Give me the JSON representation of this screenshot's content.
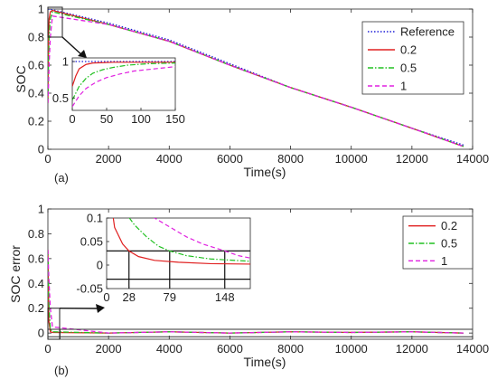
{
  "chart_data": [
    {
      "panel_label": "(a)",
      "type": "line",
      "xlabel": "Time(s)",
      "ylabel": "SOC",
      "xlim": [
        0,
        14000
      ],
      "ylim": [
        0,
        1
      ],
      "xticks": [
        "0",
        "2000",
        "4000",
        "6000",
        "8000",
        "10000",
        "12000",
        "14000"
      ],
      "yticks": [
        "0",
        "0.2",
        "0.4",
        "0.6",
        "0.8",
        "1"
      ],
      "legend_position": "top-right",
      "series": [
        {
          "name": "Reference",
          "color": "#1f1fd8",
          "style": "dotted",
          "x": [
            0,
            150,
            2000,
            4000,
            6000,
            8000,
            10000,
            12000,
            13700
          ],
          "y": [
            1.0,
            0.995,
            0.9,
            0.78,
            0.61,
            0.44,
            0.3,
            0.15,
            0.03
          ]
        },
        {
          "name": "0.2",
          "color": "#e02020",
          "style": "solid",
          "x": [
            0,
            20,
            40,
            80,
            150,
            2000,
            4000,
            6000,
            8000,
            10000,
            12000,
            13700
          ],
          "y": [
            0.33,
            0.8,
            0.93,
            0.98,
            0.99,
            0.89,
            0.77,
            0.6,
            0.44,
            0.3,
            0.15,
            0.02
          ]
        },
        {
          "name": "0.5",
          "color": "#20c020",
          "style": "dashdot",
          "x": [
            0,
            20,
            40,
            80,
            150,
            2000,
            4000,
            6000,
            8000,
            10000,
            12000,
            13700
          ],
          "y": [
            0.33,
            0.6,
            0.8,
            0.93,
            0.98,
            0.89,
            0.77,
            0.6,
            0.44,
            0.3,
            0.15,
            0.02
          ]
        },
        {
          "name": "1",
          "color": "#e020e0",
          "style": "dashed",
          "x": [
            0,
            20,
            40,
            80,
            150,
            2000,
            4000,
            6000,
            8000,
            10000,
            12000,
            13700
          ],
          "y": [
            0.33,
            0.45,
            0.6,
            0.8,
            0.95,
            0.89,
            0.77,
            0.6,
            0.44,
            0.3,
            0.15,
            0.02
          ]
        }
      ],
      "inset": {
        "xlim": [
          0,
          150
        ],
        "ylim": [
          0.33,
          1.05
        ],
        "xticks": [
          "0",
          "50",
          "100",
          "150"
        ],
        "yticks": [
          "0.5",
          "1"
        ],
        "series": [
          {
            "name": "Reference",
            "x": [
              0,
              150
            ],
            "y": [
              1.0,
              1.0
            ]
          },
          {
            "name": "0.2",
            "x": [
              0,
              5,
              10,
              20,
              30,
              45,
              60,
              90,
              150
            ],
            "y": [
              0.66,
              0.8,
              0.9,
              0.96,
              0.98,
              0.985,
              0.99,
              0.99,
              0.99
            ]
          },
          {
            "name": "0.5",
            "x": [
              0,
              10,
              20,
              30,
              45,
              60,
              80,
              110,
              150
            ],
            "y": [
              0.47,
              0.66,
              0.77,
              0.84,
              0.89,
              0.92,
              0.95,
              0.97,
              0.98
            ]
          },
          {
            "name": "1",
            "x": [
              0,
              10,
              20,
              35,
              50,
              70,
              90,
              120,
              150
            ],
            "y": [
              0.38,
              0.53,
              0.63,
              0.72,
              0.78,
              0.83,
              0.87,
              0.9,
              0.93
            ]
          }
        ]
      }
    },
    {
      "panel_label": "(b)",
      "type": "line",
      "xlabel": "Time(s)",
      "ylabel": "SOC error",
      "xlim": [
        0,
        14000
      ],
      "ylim": [
        -0.05,
        1
      ],
      "xticks": [
        "0",
        "2000",
        "4000",
        "6000",
        "8000",
        "10000",
        "12000",
        "14000"
      ],
      "yticks": [
        "0",
        "0.2",
        "0.4",
        "0.6",
        "0.8",
        "1"
      ],
      "legend_position": "top-right",
      "series": [
        {
          "name": "0.2",
          "color": "#e02020",
          "style": "solid",
          "x": [
            0,
            30,
            80,
            150,
            2000,
            4000,
            6000,
            8000,
            10000,
            12000,
            13700
          ],
          "y": [
            0.67,
            0.1,
            0.01,
            0.005,
            0.0,
            0.01,
            0.0,
            0.01,
            0.005,
            0.01,
            0.0
          ]
        },
        {
          "name": "0.5",
          "color": "#20c020",
          "style": "dashdot",
          "x": [
            0,
            30,
            80,
            150,
            2000,
            4000,
            6000,
            8000,
            10000,
            12000,
            13700
          ],
          "y": [
            0.67,
            0.25,
            0.03,
            0.01,
            0.0,
            0.01,
            0.0,
            0.01,
            0.005,
            0.01,
            0.0
          ]
        },
        {
          "name": "1",
          "color": "#e020e0",
          "style": "dashed",
          "x": [
            0,
            30,
            80,
            150,
            2000,
            4000,
            6000,
            8000,
            10000,
            12000,
            13700
          ],
          "y": [
            0.67,
            0.45,
            0.2,
            0.05,
            0.0,
            0.01,
            0.0,
            0.01,
            0.005,
            0.01,
            0.0
          ]
        }
      ],
      "inset": {
        "xlim": [
          0,
          180
        ],
        "ylim": [
          -0.05,
          0.1
        ],
        "xticks": [
          "0",
          "28",
          "79",
          "148"
        ],
        "yticks": [
          "0.1",
          "0.05",
          "0",
          "-0.05"
        ],
        "markers_x": [
          28,
          79,
          148
        ],
        "threshold_y": 0.03,
        "series": [
          {
            "name": "0.2",
            "x": [
              0,
              10,
              20,
              28,
              40,
              60,
              90,
              130,
              180
            ],
            "y": [
              0.2,
              0.08,
              0.045,
              0.03,
              0.018,
              0.01,
              0.006,
              0.003,
              0.002
            ]
          },
          {
            "name": "0.5",
            "x": [
              0,
              20,
              35,
              50,
              65,
              79,
              100,
              130,
              180
            ],
            "y": [
              0.2,
              0.12,
              0.085,
              0.06,
              0.04,
              0.03,
              0.02,
              0.013,
              0.008
            ]
          },
          {
            "name": "1",
            "x": [
              0,
              60,
              80,
              100,
              120,
              148,
              165,
              180
            ],
            "y": [
              0.2,
              0.1,
              0.08,
              0.06,
              0.045,
              0.03,
              0.02,
              0.015
            ]
          }
        ]
      }
    }
  ]
}
